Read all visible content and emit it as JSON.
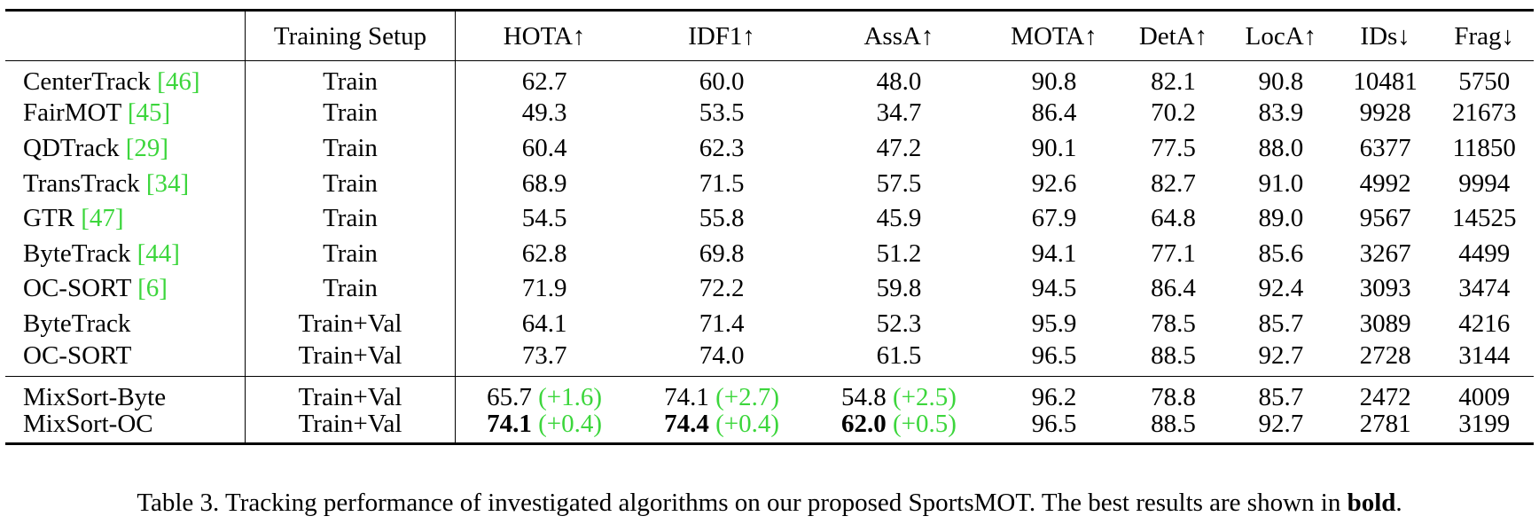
{
  "table": {
    "headers": [
      "",
      "Training Setup",
      "HOTA↑",
      "IDF1↑",
      "AssA↑",
      "MOTA↑",
      "DetA↑",
      "LocA↑",
      "IDs↓",
      "Frag↓"
    ],
    "baselines": [
      {
        "method": "CenterTrack ",
        "cite": "[46]",
        "setup": "Train",
        "hota": "62.7",
        "idf1": "60.0",
        "assa": "48.0",
        "mota": "90.8",
        "deta": "82.1",
        "loca": "90.8",
        "ids": "10481",
        "frag": "5750"
      },
      {
        "method": "FairMOT ",
        "cite": "[45]",
        "setup": "Train",
        "hota": "49.3",
        "idf1": "53.5",
        "assa": "34.7",
        "mota": "86.4",
        "deta": "70.2",
        "loca": "83.9",
        "ids": "9928",
        "frag": "21673"
      },
      {
        "method": "QDTrack ",
        "cite": "[29]",
        "setup": "Train",
        "hota": "60.4",
        "idf1": "62.3",
        "assa": "47.2",
        "mota": "90.1",
        "deta": "77.5",
        "loca": "88.0",
        "ids": "6377",
        "frag": "11850"
      },
      {
        "method": "TransTrack ",
        "cite": "[34]",
        "setup": "Train",
        "hota": "68.9",
        "idf1": "71.5",
        "assa": "57.5",
        "mota": "92.6",
        "deta": "82.7",
        "loca": "91.0",
        "ids": "4992",
        "frag": "9994"
      },
      {
        "method": "GTR ",
        "cite": "[47]",
        "setup": "Train",
        "hota": "54.5",
        "idf1": "55.8",
        "assa": "45.9",
        "mota": "67.9",
        "deta": "64.8",
        "loca": "89.0",
        "ids": "9567",
        "frag": "14525"
      },
      {
        "method": "ByteTrack ",
        "cite": "[44]",
        "setup": "Train",
        "hota": "62.8",
        "idf1": "69.8",
        "assa": "51.2",
        "mota": "94.1",
        "deta": "77.1",
        "loca": "85.6",
        "ids": "3267",
        "frag": "4499"
      },
      {
        "method": "OC-SORT ",
        "cite": "[6]",
        "setup": "Train",
        "hota": "71.9",
        "idf1": "72.2",
        "assa": "59.8",
        "mota": "94.5",
        "deta": "86.4",
        "loca": "92.4",
        "ids": "3093",
        "frag": "3474"
      },
      {
        "method": "ByteTrack",
        "cite": "",
        "setup": "Train+Val",
        "hota": "64.1",
        "idf1": "71.4",
        "assa": "52.3",
        "mota": "95.9",
        "deta": "78.5",
        "loca": "85.7",
        "ids": "3089",
        "frag": "4216"
      },
      {
        "method": "OC-SORT",
        "cite": "",
        "setup": "Train+Val",
        "hota": "73.7",
        "idf1": "74.0",
        "assa": "61.5",
        "mota": "96.5",
        "deta": "88.5",
        "loca": "92.7",
        "ids": "2728",
        "frag": "3144"
      }
    ],
    "ours": [
      {
        "method": "MixSort-Byte",
        "setup": "Train+Val",
        "hota": "65.7",
        "hota_delta": " (+1.6)",
        "idf1": "74.1",
        "idf1_delta": " (+2.7)",
        "assa": "54.8",
        "assa_delta": " (+2.5)",
        "mota": "96.2",
        "deta": "78.8",
        "loca": "85.7",
        "ids": "2472",
        "frag": "4009"
      },
      {
        "method": "MixSort-OC",
        "setup": "Train+Val",
        "hota": "74.1",
        "hota_delta": " (+0.4)",
        "idf1": "74.4",
        "idf1_delta": " (+0.4)",
        "assa": "62.0",
        "assa_delta": " (+0.5)",
        "mota": "96.5",
        "deta": "88.5",
        "loca": "92.7",
        "ids": "2781",
        "frag": "3199"
      }
    ]
  },
  "caption": {
    "text": "Table 3. Tracking performance of investigated algorithms on our proposed SportsMOT. The best results are shown in ",
    "bold_word": "bold",
    "end": "."
  },
  "colors": {
    "citation": "#3cd63c",
    "delta": "#3cd63c",
    "text": "#000000"
  }
}
